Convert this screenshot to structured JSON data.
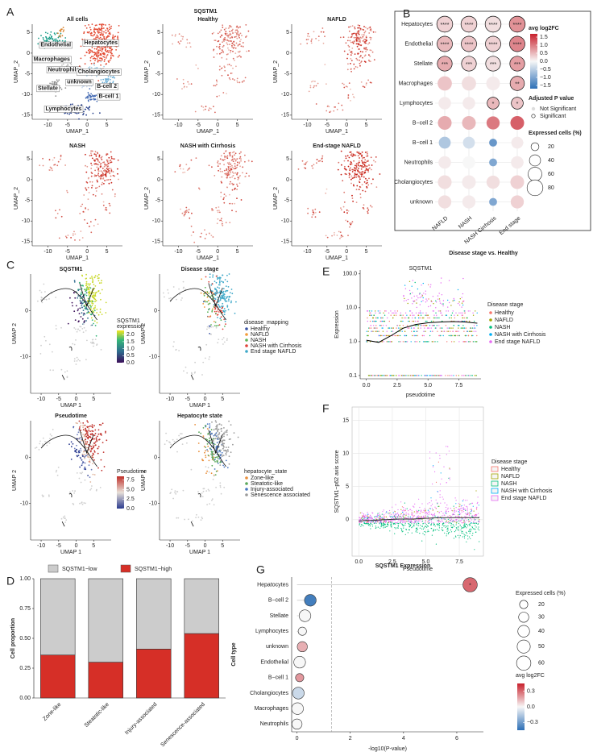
{
  "panel_labels": [
    "A",
    "B",
    "C",
    "D",
    "E",
    "F",
    "G"
  ],
  "panel_a": {
    "title": "SQSTM1",
    "subtitles": [
      "All cells",
      "Healthy",
      "NAFLD",
      "NASH",
      "NASH with Cirrhosis",
      "End-stage NAFLD"
    ],
    "xlabel": "UMAP_1",
    "ylabel": "UMAP_2",
    "xlim": [
      -14,
      9
    ],
    "ylim": [
      -16,
      7
    ],
    "xticks": [
      -10,
      -5,
      0,
      5
    ],
    "yticks": [
      5,
      0,
      -5,
      -10,
      -15
    ],
    "cluster_labels": [
      "Hepatocytes",
      "Endothelial",
      "Macrophages",
      "Neutrophils",
      "Cholangiocytes",
      "unknown",
      "B-cell 2",
      "Stellate",
      "B-cell 1",
      "Lymphocytes"
    ]
  },
  "panel_c": {
    "titles": [
      "SQSTM1",
      "Disease stage",
      "Pseudotime",
      "Hepatocyte state"
    ],
    "xlabel": "UMAP 1",
    "ylabel": "UMAP 2",
    "xlim": [
      -13,
      10
    ],
    "ylim": [
      -18,
      8
    ],
    "xticks": [
      -10,
      -5,
      0,
      5
    ],
    "yticks": [
      0,
      -10
    ],
    "expression_legend": {
      "title_lines": [
        "SQSTM1",
        "expression"
      ],
      "lim": [
        0,
        2.3
      ],
      "ticks": [
        {
          "value": 2,
          "label": "2.0"
        },
        1.5,
        {
          "value": 1,
          "label": "1.0"
        },
        0.5,
        {
          "value": 0,
          "label": "0.0"
        }
      ]
    },
    "disease_legend": {
      "title": "disease_mapping",
      "entries": [
        {
          "name": "Healthy",
          "color": "#3a53a4"
        },
        {
          "name": "NAFLD",
          "color": "#f39c39"
        },
        {
          "name": "NASH",
          "color": "#5fb55a"
        },
        {
          "name": "NASH with Cirrhosis",
          "color": "#e0443a"
        },
        {
          "name": "End stage NAFLD",
          "color": "#3fa9c9"
        }
      ]
    },
    "pseudotime_legend": {
      "title": "Pseudotime",
      "lim": [
        0,
        8.5
      ],
      "ticks": [
        7.5,
        {
          "value": 5,
          "label": "5.0"
        },
        2.5,
        {
          "value": 0,
          "label": "0.0"
        }
      ]
    },
    "state_legend": {
      "title": "hepatocyte_state",
      "entries": [
        {
          "name": "Zone-like",
          "color": "#e98e3a"
        },
        {
          "name": "Steatotic-like",
          "color": "#5aa85a"
        },
        {
          "name": "Injury-associated",
          "color": "#4a78c2"
        },
        {
          "name": "Senescence associated",
          "color": "#9b9b9b"
        }
      ]
    }
  },
  "chart_data": [
    {
      "type": "dot",
      "categories": [
        "NAFLD",
        "NASH",
        "NASH Cirrhosis",
        "End stage"
      ],
      "rows": [
        "Hepatocytes",
        "Endothelial",
        "Stellate",
        "Macrophages",
        "Lymphocytes",
        "B−cell 2",
        "B−cell 1",
        "Neutrophils",
        "Cholangiocytes",
        "unknown"
      ],
      "values": [
        [
          0.3,
          0.3,
          0.2,
          0.8
        ],
        [
          0.5,
          0.4,
          0.3,
          0.9
        ],
        [
          0.6,
          0.3,
          0.2,
          0.7
        ],
        [
          0.4,
          0.2,
          0.1,
          0.6
        ],
        [
          0.1,
          0.1,
          0.5,
          0.4
        ],
        [
          0.6,
          0.5,
          1.0,
          1.2
        ],
        [
          -0.6,
          -0.3,
          -1.2,
          0.1
        ],
        [
          0.1,
          0.0,
          -1.0,
          0.1
        ],
        [
          0.2,
          0.1,
          0.2,
          0.3
        ],
        [
          0.2,
          0.1,
          -1.0,
          0.3
        ]
      ],
      "sizes": [
        [
          80,
          80,
          80,
          80
        ],
        [
          75,
          75,
          75,
          75
        ],
        [
          70,
          70,
          70,
          70
        ],
        [
          65,
          65,
          60,
          65
        ],
        [
          50,
          50,
          45,
          45
        ],
        [
          60,
          60,
          55,
          60
        ],
        [
          45,
          45,
          20,
          45
        ],
        [
          50,
          50,
          20,
          50
        ],
        [
          60,
          60,
          55,
          60
        ],
        [
          55,
          55,
          20,
          55
        ]
      ],
      "significance": [
        [
          "****",
          "****",
          "****",
          "****"
        ],
        [
          "****",
          "****",
          "****",
          "****"
        ],
        [
          "***",
          "***",
          "***",
          "***"
        ],
        [
          null,
          null,
          null,
          "**"
        ],
        [
          null,
          null,
          "*",
          "*"
        ],
        [
          null,
          null,
          null,
          null
        ],
        [
          null,
          null,
          null,
          null
        ],
        [
          null,
          null,
          null,
          null
        ],
        [
          null,
          null,
          null,
          null
        ],
        [
          null,
          null,
          null,
          null
        ]
      ],
      "color_title": "avg log2FC",
      "color_lim": [
        -1.7,
        1.7
      ],
      "color_ticks": [
        1.5,
        {
          "value": 1,
          "label": "1.0"
        },
        0.5,
        {
          "value": 0,
          "label": "0.0"
        },
        {
          "value": -0.5,
          "label": "−0.5"
        },
        {
          "value": -1,
          "label": "−1.0"
        },
        {
          "value": -1.5,
          "label": "−1.5"
        }
      ],
      "pvalue_title": "Adjusted P value",
      "pvalue_entries": [
        "Not Significant",
        "Significant"
      ],
      "size_title": "Expressed cells (%)",
      "size_ticks": [
        20,
        40,
        60,
        80
      ]
    },
    {
      "type": "line",
      "header": "Disease stage vs. Healthy",
      "title": "SQSTM1",
      "xlabel": "pseudotime",
      "ylabel": "Expression",
      "log_y": true,
      "xlim": [
        -0.5,
        9.3
      ],
      "ylim": [
        0.08,
        130
      ],
      "xticks": [
        {
          "value": 0,
          "label": "0.0"
        },
        2.5,
        {
          "value": 5,
          "label": "5.0"
        },
        7.5
      ],
      "yticks": [
        0.1,
        {
          "value": 1,
          "label": "1.0"
        },
        {
          "value": 10,
          "label": "10.0"
        },
        {
          "value": 100,
          "label": "100.0"
        }
      ],
      "x": [
        0,
        1,
        2,
        3,
        4,
        5,
        6,
        7,
        8,
        9
      ],
      "values": [
        1.1,
        0.95,
        1.5,
        2.5,
        3.2,
        3.6,
        3.8,
        3.9,
        3.8,
        3.5
      ],
      "color": "#000000",
      "legend_title": "Disease stage",
      "groups": [
        {
          "name": "Healthy",
          "color": "#f8766d"
        },
        {
          "name": "NAFLD",
          "color": "#a3a500"
        },
        {
          "name": "NASH",
          "color": "#00bf7d"
        },
        {
          "name": "NASH with Cirrhosis",
          "color": "#00b0f6"
        },
        {
          "name": "End stage NAFLD",
          "color": "#e76bf3"
        }
      ]
    },
    {
      "type": "line",
      "xlabel": "Pseudotime",
      "ylabel": "SQSTM1−p62 axis score",
      "grid": true,
      "xlim": [
        -0.5,
        9.3
      ],
      "ylim": [
        -5.5,
        17
      ],
      "xticks": [
        {
          "value": 0,
          "label": "0.0"
        },
        2.5,
        {
          "value": 5,
          "label": "5.0"
        },
        7.5
      ],
      "yticks": [
        0,
        5,
        10,
        15
      ],
      "x": [
        0,
        1,
        2,
        3,
        4,
        5,
        6,
        7,
        8,
        9
      ],
      "values": [
        -0.2,
        -0.1,
        0,
        0.1,
        0.1,
        0.2,
        0.3,
        0.3,
        0.3,
        0.3
      ],
      "color": "#333333",
      "legend_title": "Disease stage",
      "groups": [
        {
          "name": "Healthy",
          "color": "#f8766d"
        },
        {
          "name": "NAFLD",
          "color": "#a3a500"
        },
        {
          "name": "NASH",
          "color": "#00bf7d"
        },
        {
          "name": "NASH with Cirrhosis",
          "color": "#00b0f6"
        },
        {
          "name": "End stage NAFLD",
          "color": "#e76bf3"
        }
      ]
    },
    {
      "type": "stacked_bar",
      "ylabel": "Cell proportion",
      "categories": [
        "Zone-like",
        "Steatotic-like",
        "Injury-associated",
        "Senescence-associated"
      ],
      "series": [
        {
          "name": "SQSTM1−low",
          "color": "#cccccc",
          "values": [
            0.64,
            0.7,
            0.59,
            0.46
          ]
        },
        {
          "name": "SQSTM1−high",
          "color": "#d62f27",
          "values": [
            0.36,
            0.3,
            0.41,
            0.54
          ]
        }
      ],
      "ylim": [
        0,
        1
      ],
      "yticks": [
        {
          "value": 0,
          "label": "0.00"
        },
        0.25,
        {
          "value": 0.5,
          "label": "0.50"
        },
        0.75,
        {
          "value": 1,
          "label": "1.00"
        }
      ]
    },
    {
      "type": "lollipop",
      "title": "SQSTM1 Expression",
      "xlabel": "-log10(P-value)",
      "ylabel": "Cell type",
      "categories": [
        "Hepatocytes",
        "B−cell 2",
        "Stellate",
        "Lymphocytes",
        "unknown",
        "Endothelial",
        "B−cell 1",
        "Cholangiocytes",
        "Macrophages",
        "Neutrophils"
      ],
      "values": [
        6.5,
        0.5,
        0.3,
        0.2,
        0.2,
        0.1,
        0.1,
        0.05,
        0.02,
        0.0
      ],
      "color_values": [
        0.3,
        -0.4,
        0.0,
        0.0,
        0.15,
        0.0,
        0.2,
        -0.1,
        0.0,
        0.0
      ],
      "sizes": [
        60,
        40,
        40,
        20,
        30,
        40,
        20,
        40,
        40,
        30
      ],
      "significance": [
        "*",
        null,
        null,
        null,
        null,
        null,
        null,
        null,
        null,
        null
      ],
      "threshold": 1.3,
      "xlim": [
        -0.2,
        7
      ],
      "xticks": [
        0,
        2,
        4,
        6
      ],
      "size_title": "Expressed cells (%)",
      "size_ticks": [
        20,
        30,
        40,
        50,
        60
      ],
      "color_title": "avg log2FC",
      "color_lim": [
        -0.45,
        0.45
      ],
      "color_ticks": [
        0.3,
        {
          "value": 0,
          "label": "0.0"
        },
        {
          "value": -0.3,
          "label": "−0.3"
        }
      ]
    }
  ]
}
